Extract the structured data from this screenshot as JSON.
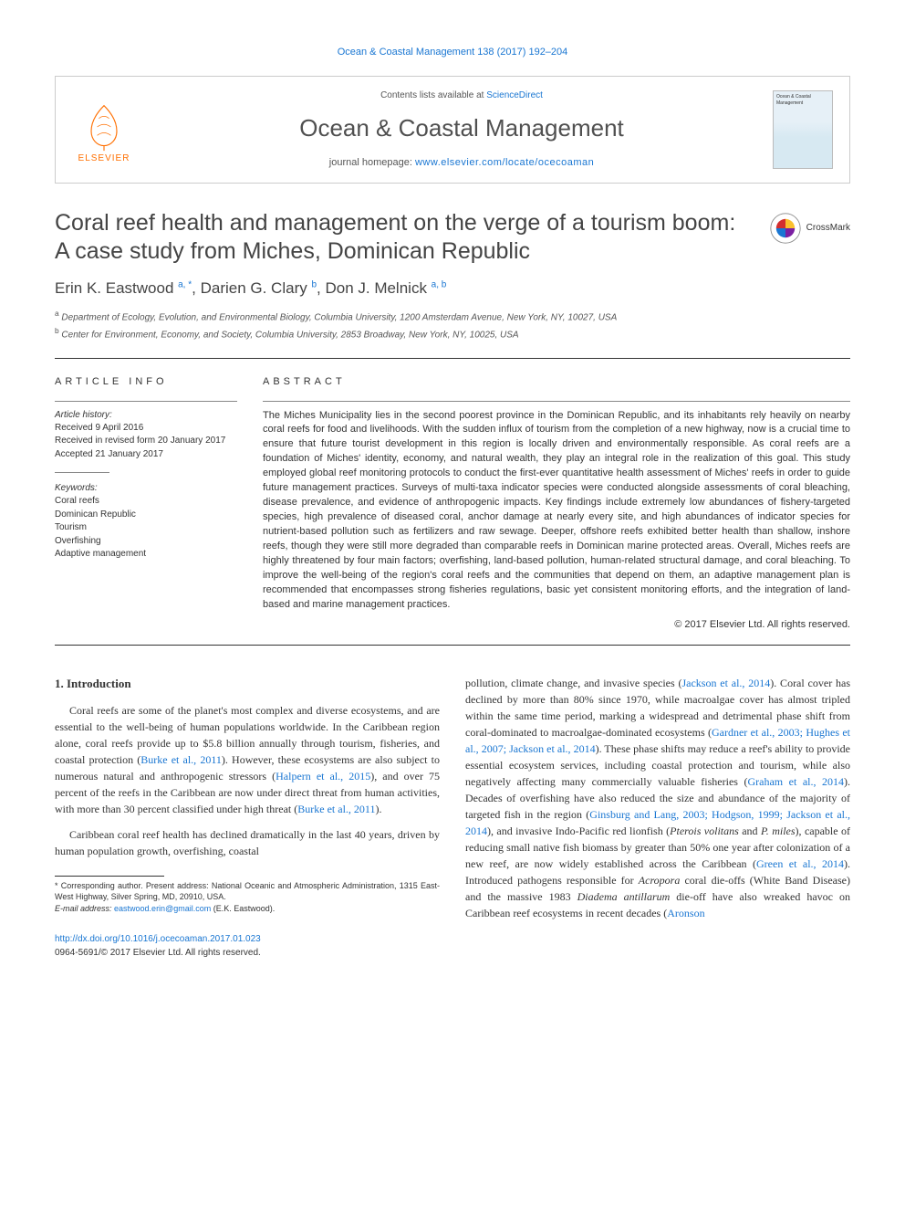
{
  "running_head": "Ocean & Coastal Management 138 (2017) 192–204",
  "masthead": {
    "contents_prefix": "Contents lists available at ",
    "contents_link": "ScienceDirect",
    "journal": "Ocean & Coastal Management",
    "homepage_prefix": "journal homepage: ",
    "homepage_url": "www.elsevier.com/locate/ocecoaman",
    "publisher": "ELSEVIER",
    "cover_label": "Ocean & Coastal Management"
  },
  "colors": {
    "link": "#1976d2",
    "elsevier_orange": "#ff6f00",
    "text": "#333333",
    "rule": "#333333",
    "border": "#cccccc"
  },
  "title": "Coral reef health and management on the verge of a tourism boom: A case study from Miches, Dominican Republic",
  "crossmark": "CrossMark",
  "authors_html": "Erin K. Eastwood <sup>a, *</sup>, Darien G. Clary <sup>b</sup>, Don J. Melnick <sup>a, b</sup>",
  "affiliations": {
    "a": "Department of Ecology, Evolution, and Environmental Biology, Columbia University, 1200 Amsterdam Avenue, New York, NY, 10027, USA",
    "b": "Center for Environment, Economy, and Society, Columbia University, 2853 Broadway, New York, NY, 10025, USA"
  },
  "article_info": {
    "heading": "ARTICLE INFO",
    "history_label": "Article history:",
    "received": "Received 9 April 2016",
    "revised": "Received in revised form 20 January 2017",
    "accepted": "Accepted 21 January 2017",
    "keywords_label": "Keywords:",
    "keywords": [
      "Coral reefs",
      "Dominican Republic",
      "Tourism",
      "Overfishing",
      "Adaptive management"
    ]
  },
  "abstract": {
    "heading": "ABSTRACT",
    "text": "The Miches Municipality lies in the second poorest province in the Dominican Republic, and its inhabitants rely heavily on nearby coral reefs for food and livelihoods. With the sudden influx of tourism from the completion of a new highway, now is a crucial time to ensure that future tourist development in this region is locally driven and environmentally responsible. As coral reefs are a foundation of Miches' identity, economy, and natural wealth, they play an integral role in the realization of this goal. This study employed global reef monitoring protocols to conduct the first-ever quantitative health assessment of Miches' reefs in order to guide future management practices. Surveys of multi-taxa indicator species were conducted alongside assessments of coral bleaching, disease prevalence, and evidence of anthropogenic impacts. Key findings include extremely low abundances of fishery-targeted species, high prevalence of diseased coral, anchor damage at nearly every site, and high abundances of indicator species for nutrient-based pollution such as fertilizers and raw sewage. Deeper, offshore reefs exhibited better health than shallow, inshore reefs, though they were still more degraded than comparable reefs in Dominican marine protected areas. Overall, Miches reefs are highly threatened by four main factors; overfishing, land-based pollution, human-related structural damage, and coral bleaching. To improve the well-being of the region's coral reefs and the communities that depend on them, an adaptive management plan is recommended that encompasses strong fisheries regulations, basic yet consistent monitoring efforts, and the integration of land-based and marine management practices.",
    "copyright": "© 2017 Elsevier Ltd. All rights reserved."
  },
  "body": {
    "section_heading": "1. Introduction",
    "col1_p1": "Coral reefs are some of the planet's most complex and diverse ecosystems, and are essential to the well-being of human populations worldwide. In the Caribbean region alone, coral reefs provide up to $5.8 billion annually through tourism, fisheries, and coastal protection (",
    "col1_cite1": "Burke et al., 2011",
    "col1_p1b": "). However, these ecosystems are also subject to numerous natural and anthropogenic stressors (",
    "col1_cite2": "Halpern et al., 2015",
    "col1_p1c": "), and over 75 percent of the reefs in the Caribbean are now under direct threat from human activities, with more than 30 percent classified under high threat (",
    "col1_cite3": "Burke et al., 2011",
    "col1_p1d": ").",
    "col1_p2": "Caribbean coral reef health has declined dramatically in the last 40 years, driven by human population growth, overfishing, coastal",
    "col2_p1a": "pollution, climate change, and invasive species (",
    "col2_cite1": "Jackson et al., 2014",
    "col2_p1b": "). Coral cover has declined by more than 80% since 1970, while macroalgae cover has almost tripled within the same time period, marking a widespread and detrimental phase shift from coral-dominated to macroalgae-dominated ecosystems (",
    "col2_cite2": "Gardner et al., 2003; Hughes et al., 2007; Jackson et al., 2014",
    "col2_p1c": "). These phase shifts may reduce a reef's ability to provide essential ecosystem services, including coastal protection and tourism, while also negatively affecting many commercially valuable fisheries (",
    "col2_cite3": "Graham et al., 2014",
    "col2_p1d": "). Decades of overfishing have also reduced the size and abundance of the majority of targeted fish in the region (",
    "col2_cite4": "Ginsburg and Lang, 2003; Hodgson, 1999; Jackson et al., 2014",
    "col2_p1e": "), and invasive Indo-Pacific red lionfish (",
    "col2_ital1": "Pterois volitans",
    "col2_p1f": " and ",
    "col2_ital2": "P. miles",
    "col2_p1g": "), capable of reducing small native fish biomass by greater than 50% one year after colonization of a new reef, are now widely established across the Caribbean (",
    "col2_cite5": "Green et al., 2014",
    "col2_p1h": "). Introduced pathogens responsible for ",
    "col2_ital3": "Acropora",
    "col2_p1i": " coral die-offs (White Band Disease) and the massive 1983 ",
    "col2_ital4": "Diadema antillarum",
    "col2_p1j": " die-off have also wreaked havoc on Caribbean reef ecosystems in recent decades (",
    "col2_cite6": "Aronson"
  },
  "footnotes": {
    "corr": "* Corresponding author. Present address: National Oceanic and Atmospheric Administration, 1315 East-West Highway, Silver Spring, MD, 20910, USA.",
    "email_label": "E-mail address: ",
    "email": "eastwood.erin@gmail.com",
    "email_who": " (E.K. Eastwood)."
  },
  "footer": {
    "doi": "http://dx.doi.org/10.1016/j.ocecoaman.2017.01.023",
    "issn_line": "0964-5691/© 2017 Elsevier Ltd. All rights reserved."
  }
}
